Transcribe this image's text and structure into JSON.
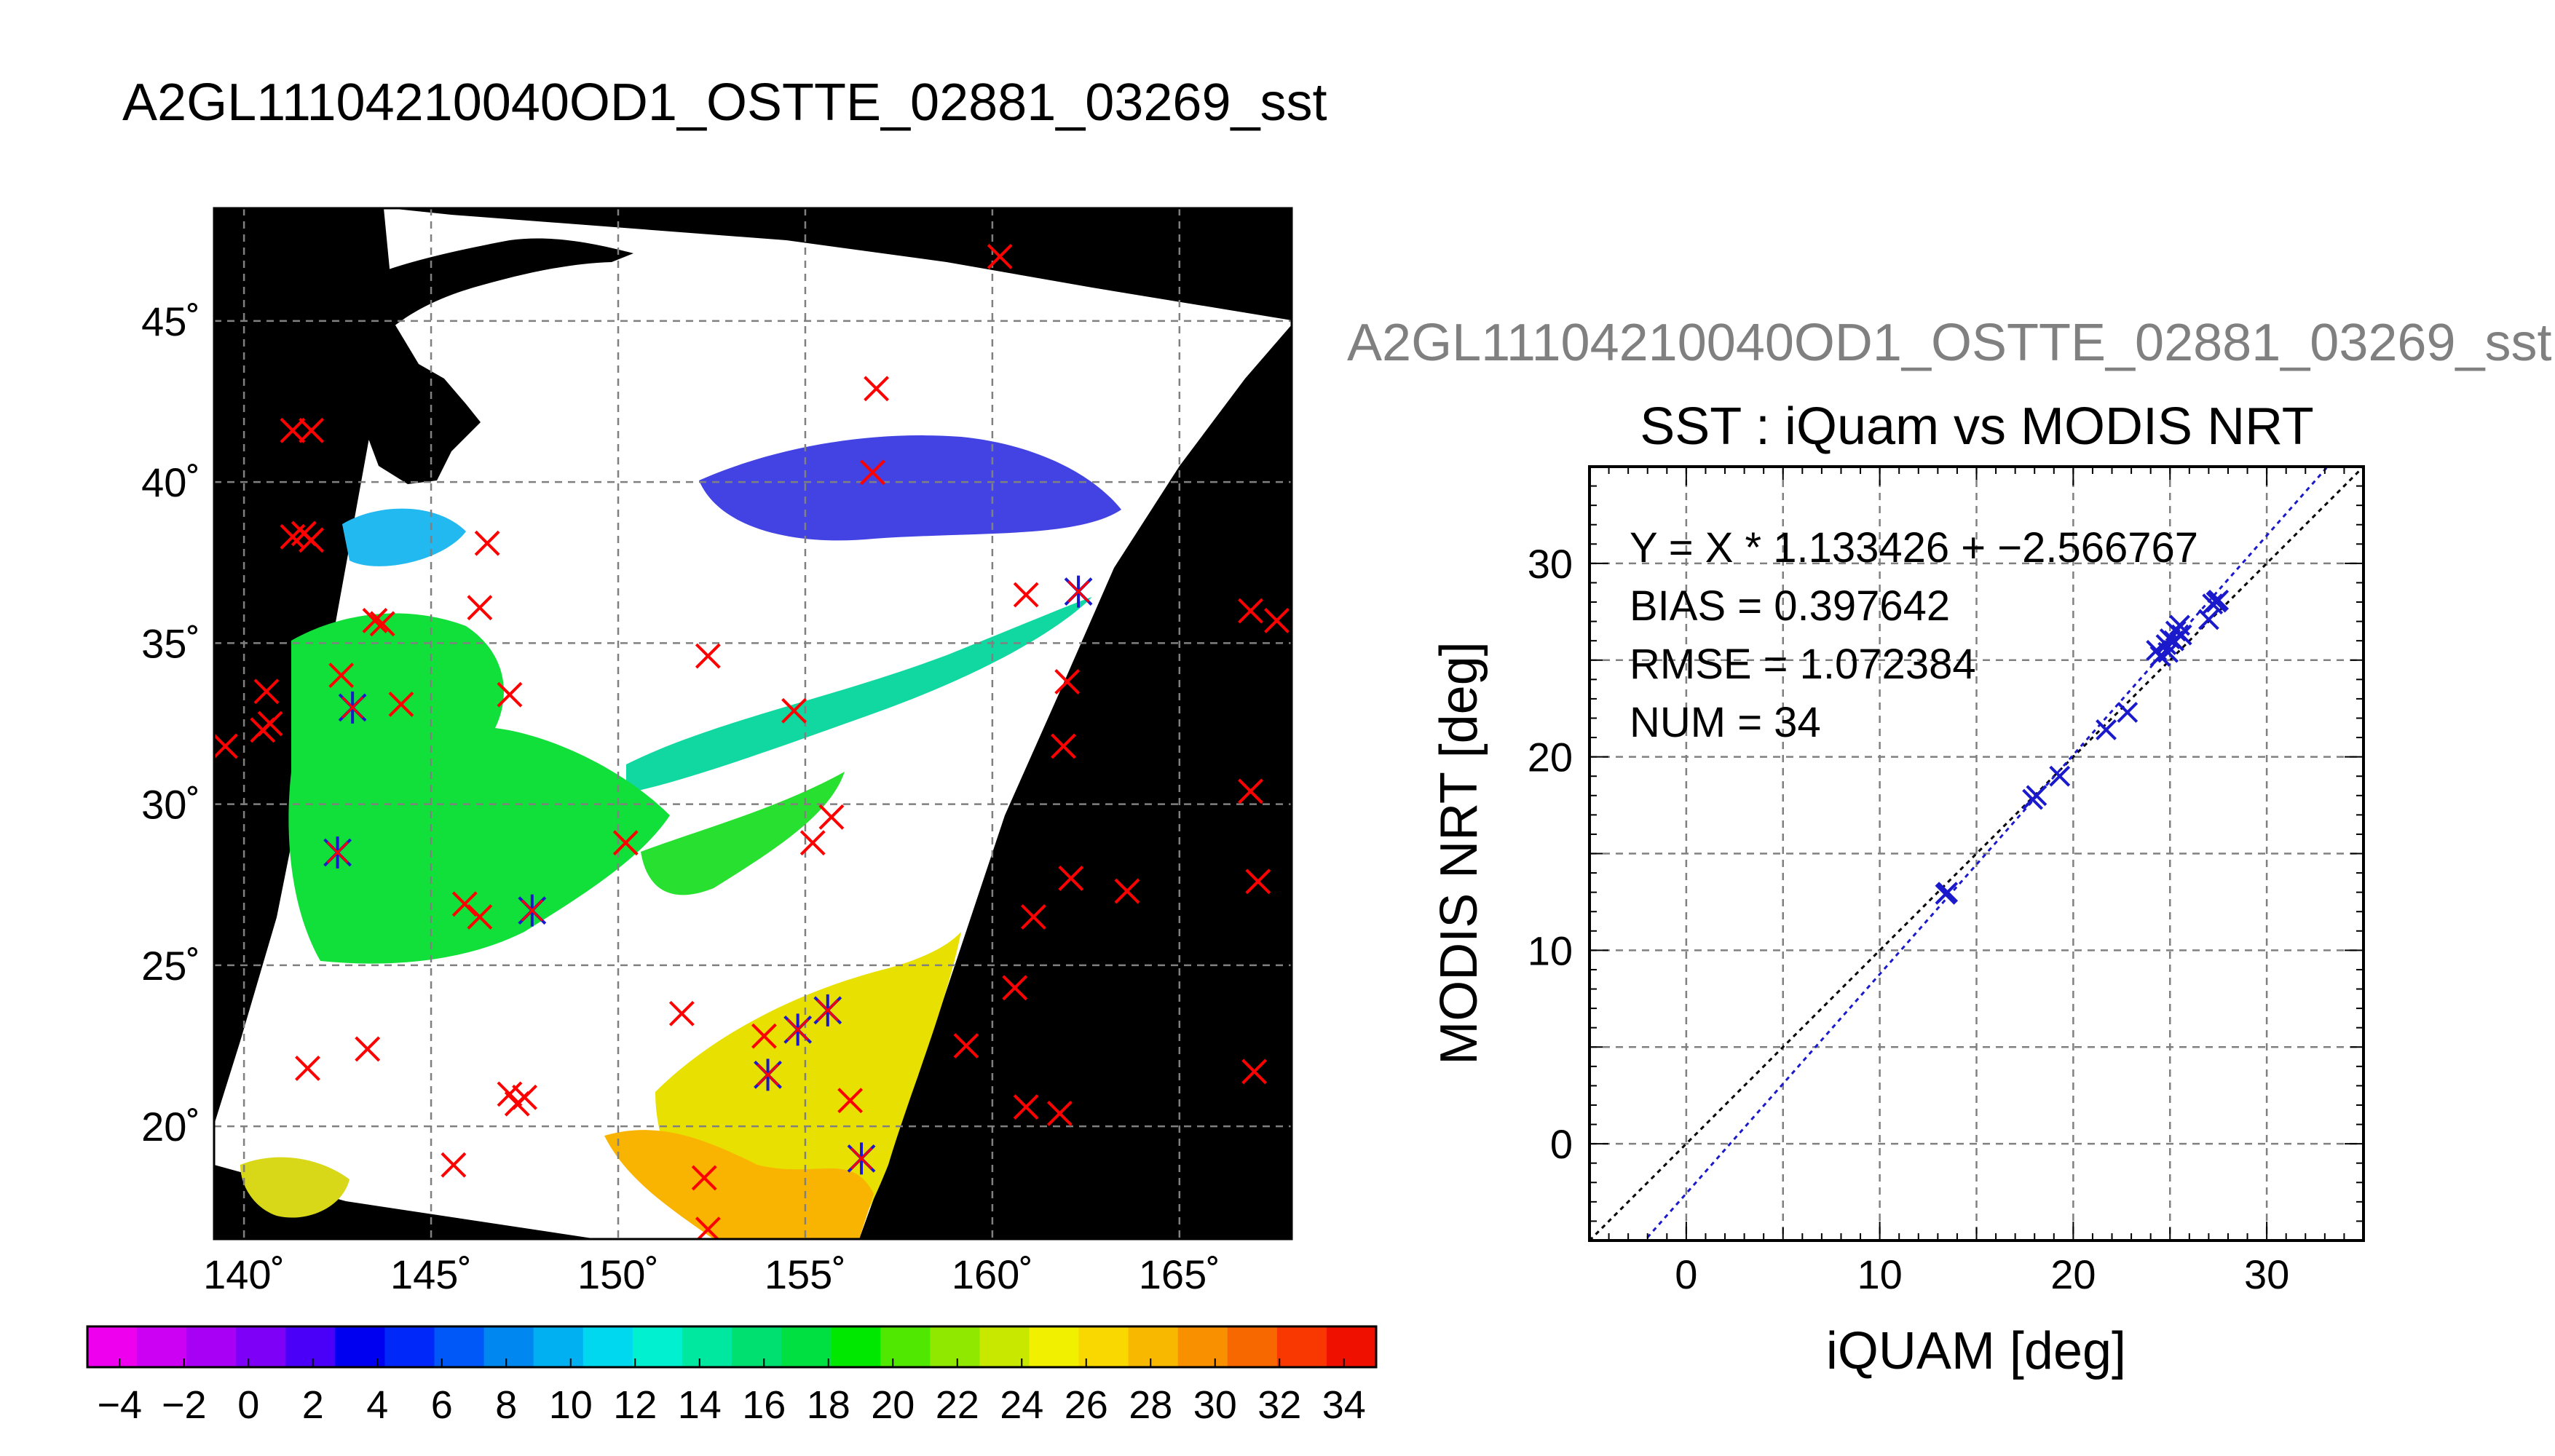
{
  "title": "A2GL11104210040OD1_OSTTE_02881_03269_sst",
  "colors": {
    "land": "#000000",
    "grid": "#808080",
    "match_marker": "#ff0000",
    "valid_match_marker": "#1a1acc",
    "fit_line": "#1a1acc",
    "identity_line": "#000000"
  },
  "map": {
    "xticks": [
      "140˚",
      "145˚",
      "150˚",
      "155˚",
      "160˚",
      "165˚"
    ],
    "yticks": [
      "45˚",
      "40˚",
      "35˚",
      "30˚",
      "25˚",
      "20˚"
    ],
    "lon_range": [
      139.2,
      168.0
    ],
    "lat_range": [
      16.5,
      48.5
    ]
  },
  "colorbar": {
    "labels": [
      "−4",
      "−2",
      "0",
      "2",
      "4",
      "6",
      "8",
      "10",
      "12",
      "14",
      "16",
      "18",
      "20",
      "22",
      "24",
      "26",
      "28",
      "30",
      "32",
      "34"
    ],
    "range": [
      -5,
      35
    ],
    "colors": [
      "#ee00ee",
      "#cc00f2",
      "#a800f4",
      "#7e00f6",
      "#4a00f8",
      "#0000f0",
      "#0028f8",
      "#0058f8",
      "#0088f0",
      "#00b0f0",
      "#00d8f0",
      "#00f0d0",
      "#00e8a0",
      "#00e070",
      "#00e040",
      "#00e800",
      "#50e800",
      "#90e800",
      "#c8e800",
      "#f0f000",
      "#f8d800",
      "#f8b800",
      "#f89000",
      "#f86800",
      "#f83800",
      "#f01000"
    ]
  },
  "matchups": {
    "red": [
      {
        "lon": 160.2,
        "lat": 47.0
      },
      {
        "lon": 156.9,
        "lat": 42.9
      },
      {
        "lon": 156.8,
        "lat": 40.3
      },
      {
        "lon": 141.3,
        "lat": 41.6
      },
      {
        "lon": 141.8,
        "lat": 41.6
      },
      {
        "lon": 141.3,
        "lat": 38.3
      },
      {
        "lon": 141.6,
        "lat": 38.4
      },
      {
        "lon": 141.8,
        "lat": 38.2
      },
      {
        "lon": 146.5,
        "lat": 38.1
      },
      {
        "lon": 146.3,
        "lat": 36.1
      },
      {
        "lon": 143.5,
        "lat": 35.7
      },
      {
        "lon": 143.7,
        "lat": 35.6
      },
      {
        "lon": 142.6,
        "lat": 34.0
      },
      {
        "lon": 144.2,
        "lat": 33.1
      },
      {
        "lon": 147.1,
        "lat": 33.4
      },
      {
        "lon": 140.6,
        "lat": 33.5
      },
      {
        "lon": 140.5,
        "lat": 32.3
      },
      {
        "lon": 140.7,
        "lat": 32.5
      },
      {
        "lon": 139.5,
        "lat": 31.8
      },
      {
        "lon": 152.4,
        "lat": 34.6
      },
      {
        "lon": 154.7,
        "lat": 32.9
      },
      {
        "lon": 160.9,
        "lat": 36.5
      },
      {
        "lon": 162.0,
        "lat": 33.8
      },
      {
        "lon": 161.9,
        "lat": 31.8
      },
      {
        "lon": 150.2,
        "lat": 28.8
      },
      {
        "lon": 155.7,
        "lat": 29.6
      },
      {
        "lon": 155.2,
        "lat": 28.8
      },
      {
        "lon": 145.9,
        "lat": 26.9
      },
      {
        "lon": 146.3,
        "lat": 26.5
      },
      {
        "lon": 162.1,
        "lat": 27.7
      },
      {
        "lon": 163.6,
        "lat": 27.3
      },
      {
        "lon": 161.1,
        "lat": 26.5
      },
      {
        "lon": 166.9,
        "lat": 30.4
      },
      {
        "lon": 167.1,
        "lat": 27.6
      },
      {
        "lon": 166.9,
        "lat": 36.0
      },
      {
        "lon": 167.6,
        "lat": 35.7
      },
      {
        "lon": 160.6,
        "lat": 24.3
      },
      {
        "lon": 159.3,
        "lat": 22.5
      },
      {
        "lon": 151.7,
        "lat": 23.5
      },
      {
        "lon": 153.9,
        "lat": 22.8
      },
      {
        "lon": 143.3,
        "lat": 22.4
      },
      {
        "lon": 141.7,
        "lat": 21.8
      },
      {
        "lon": 147.1,
        "lat": 21.0
      },
      {
        "lon": 147.3,
        "lat": 20.7
      },
      {
        "lon": 147.5,
        "lat": 20.9
      },
      {
        "lon": 156.2,
        "lat": 20.8
      },
      {
        "lon": 160.9,
        "lat": 20.6
      },
      {
        "lon": 161.8,
        "lat": 20.4
      },
      {
        "lon": 167.0,
        "lat": 21.7
      },
      {
        "lon": 145.6,
        "lat": 18.8
      },
      {
        "lon": 152.3,
        "lat": 18.4
      },
      {
        "lon": 152.4,
        "lat": 16.8
      }
    ],
    "blue": [
      {
        "lon": 162.3,
        "lat": 36.6
      },
      {
        "lon": 142.9,
        "lat": 33.0
      },
      {
        "lon": 142.5,
        "lat": 28.5
      },
      {
        "lon": 147.7,
        "lat": 26.7
      },
      {
        "lon": 155.6,
        "lat": 23.6
      },
      {
        "lon": 154.8,
        "lat": 23.0
      },
      {
        "lon": 154.0,
        "lat": 21.6
      },
      {
        "lon": 156.5,
        "lat": 19.0
      }
    ]
  },
  "chart_data": {
    "type": "scatter",
    "title": "SST : iQuam vs MODIS NRT",
    "xlabel": "iQUAM [deg]",
    "ylabel": "MODIS NRT [deg]",
    "xlim": [
      -5,
      35
    ],
    "ylim": [
      -5,
      35
    ],
    "xticks": [
      "0",
      "10",
      "20",
      "30"
    ],
    "yticks": [
      "0",
      "10",
      "20",
      "30"
    ],
    "grid": true,
    "annotations": [
      "Y = X * 1.133426 + −2.566767",
      "BIAS = 0.397642",
      "RMSE = 1.072384",
      "NUM = 34"
    ],
    "fit": {
      "slope": 1.133426,
      "intercept": -2.566767
    },
    "points": [
      {
        "x": 13.4,
        "y": 12.9
      },
      {
        "x": 13.5,
        "y": 13.0
      },
      {
        "x": 17.9,
        "y": 17.8
      },
      {
        "x": 18.1,
        "y": 18.0
      },
      {
        "x": 19.3,
        "y": 19.0
      },
      {
        "x": 21.7,
        "y": 21.4
      },
      {
        "x": 22.8,
        "y": 22.3
      },
      {
        "x": 24.3,
        "y": 25.5
      },
      {
        "x": 24.5,
        "y": 25.2
      },
      {
        "x": 24.8,
        "y": 25.8
      },
      {
        "x": 24.9,
        "y": 25.4
      },
      {
        "x": 25.0,
        "y": 26.1
      },
      {
        "x": 25.2,
        "y": 26.0
      },
      {
        "x": 25.3,
        "y": 26.5
      },
      {
        "x": 25.5,
        "y": 26.8
      },
      {
        "x": 25.6,
        "y": 26.3
      },
      {
        "x": 27.0,
        "y": 27.1
      },
      {
        "x": 27.2,
        "y": 27.9
      },
      {
        "x": 27.4,
        "y": 28.0
      },
      {
        "x": 27.5,
        "y": 28.1
      }
    ]
  }
}
